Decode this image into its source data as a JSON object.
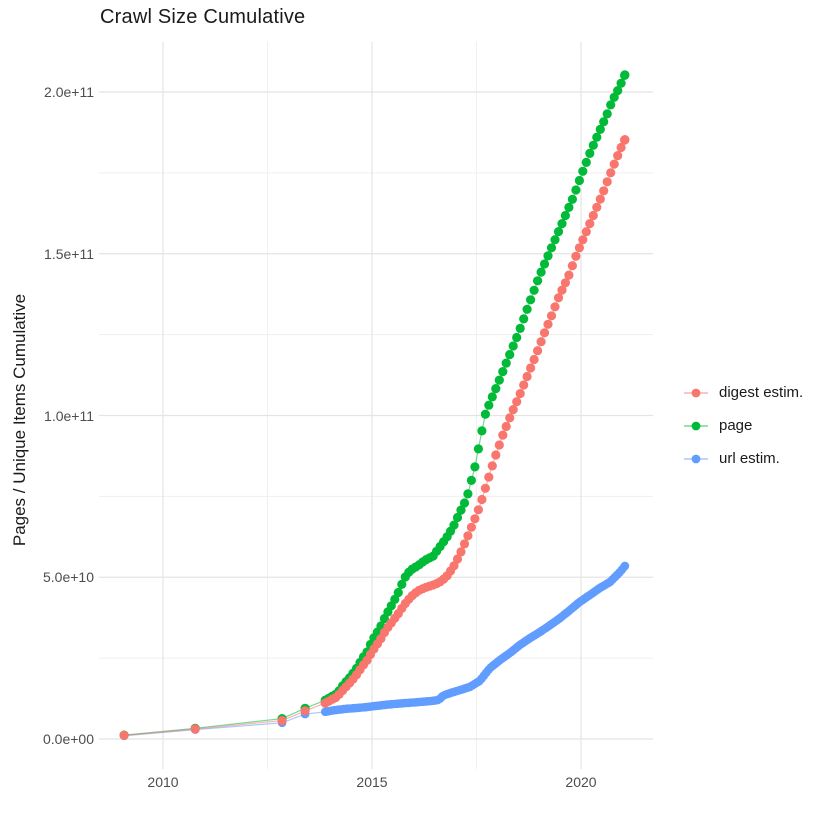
{
  "title": "Crawl Size Cumulative",
  "chart_data": {
    "type": "scatter",
    "title": "Crawl Size Cumulative",
    "xlabel": "",
    "ylabel": "Pages / Unique Items Cumulative",
    "x_unit": "year",
    "xlim": [
      2008.5,
      2021.65
    ],
    "ylim": [
      -9000000000.0,
      215500000000.0
    ],
    "grid": true,
    "legend_position": "right",
    "x_ticks": {
      "values": [
        2010,
        2015,
        2020
      ],
      "labels": [
        "2010",
        "2015",
        "2020"
      ],
      "minor": [
        2012.5,
        2017.5
      ]
    },
    "y_ticks": {
      "values": [
        0,
        50000000000.0,
        100000000000.0,
        150000000000.0,
        200000000000.0
      ],
      "labels": [
        "0.0e+00",
        "5.0e+10",
        "1.0e+11",
        "1.5e+11",
        "2.0e+11"
      ],
      "minor": [
        25000000000.0,
        75000000000.0,
        125000000000.0,
        175000000000.0
      ]
    },
    "colors": {
      "grid_major": "#e4e4e4",
      "grid_minor": "#efefef",
      "tick_text": "#4d4d4d",
      "title_text": "#1a1a1a"
    },
    "series": [
      {
        "name": "url estim.",
        "color": "#619CFF",
        "sparse_points": [
          [
            2009.07,
            1000000000.0
          ],
          [
            2010.77,
            2900000000.0
          ],
          [
            2012.85,
            5000000000.0
          ],
          [
            2013.4,
            7700000000.0
          ]
        ],
        "anchors": [
          [
            2013.88,
            8400000000.0
          ],
          [
            2014.1,
            8900000000.0
          ],
          [
            2014.35,
            9300000000.0
          ],
          [
            2014.64,
            9600000000.0
          ],
          [
            2014.9,
            9900000000.0
          ],
          [
            2015.2,
            10400000000.0
          ],
          [
            2015.5,
            10800000000.0
          ],
          [
            2015.79,
            11100000000.0
          ],
          [
            2016.0,
            11300000000.0
          ],
          [
            2016.2,
            11500000000.0
          ],
          [
            2016.45,
            11800000000.0
          ],
          [
            2016.6,
            12100000000.0
          ],
          [
            2016.7,
            13400000000.0
          ],
          [
            2016.87,
            14200000000.0
          ],
          [
            2017.1,
            15100000000.0
          ],
          [
            2017.34,
            16100000000.0
          ],
          [
            2017.58,
            18000000000.0
          ],
          [
            2017.82,
            21900000000.0
          ],
          [
            2018.06,
            24400000000.0
          ],
          [
            2018.3,
            26600000000.0
          ],
          [
            2018.54,
            29100000000.0
          ],
          [
            2018.78,
            31200000000.0
          ],
          [
            2019.02,
            33100000000.0
          ],
          [
            2019.26,
            35200000000.0
          ],
          [
            2019.5,
            37400000000.0
          ],
          [
            2019.74,
            39900000000.0
          ],
          [
            2019.97,
            42400000000.0
          ],
          [
            2020.21,
            44500000000.0
          ],
          [
            2020.45,
            46700000000.0
          ],
          [
            2020.69,
            48500000000.0
          ],
          [
            2020.93,
            51600000000.0
          ],
          [
            2021.05,
            53500000000.0
          ]
        ],
        "dense_step": 0.055
      },
      {
        "name": "page",
        "color": "#00BA38",
        "sparse_points": [
          [
            2009.07,
            1200000000.0
          ],
          [
            2010.77,
            3300000000.0
          ],
          [
            2012.85,
            6300000000.0
          ],
          [
            2013.4,
            9500000000.0
          ]
        ],
        "anchors": [
          [
            2013.88,
            12000000000.0
          ],
          [
            2014.16,
            14000000000.0
          ],
          [
            2014.33,
            17000000000.0
          ],
          [
            2014.5,
            19500000000.0
          ],
          [
            2014.64,
            22000000000.0
          ],
          [
            2014.76,
            24700000000.0
          ],
          [
            2014.88,
            26900000000.0
          ],
          [
            2014.98,
            29700000000.0
          ],
          [
            2015.07,
            31800000000.0
          ],
          [
            2015.19,
            34300000000.0
          ],
          [
            2015.29,
            37100000000.0
          ],
          [
            2015.38,
            39300000000.0
          ],
          [
            2015.5,
            42000000000.0
          ],
          [
            2015.62,
            45000000000.0
          ],
          [
            2015.72,
            48000000000.0
          ],
          [
            2015.83,
            51000000000.0
          ],
          [
            2015.96,
            52500000000.0
          ],
          [
            2016.1,
            53600000000.0
          ],
          [
            2016.27,
            55300000000.0
          ],
          [
            2016.46,
            56500000000.0
          ],
          [
            2016.6,
            59000000000.0
          ],
          [
            2016.77,
            62000000000.0
          ],
          [
            2016.94,
            65500000000.0
          ],
          [
            2017.1,
            70000000000.0
          ],
          [
            2017.27,
            74500000000.0
          ],
          [
            2017.46,
            84000000000.0
          ],
          [
            2017.58,
            92000000000.0
          ],
          [
            2017.7,
            100000000000.0
          ],
          [
            2017.82,
            104000000000.0
          ],
          [
            2017.92,
            107000000000.0
          ],
          [
            2018.11,
            113000000000.0
          ],
          [
            2018.3,
            119000000000.0
          ],
          [
            2018.49,
            125000000000.0
          ],
          [
            2018.66,
            131000000000.0
          ],
          [
            2018.83,
            137000000000.0
          ],
          [
            2019.0,
            143000000000.0
          ],
          [
            2019.2,
            149000000000.0
          ],
          [
            2019.4,
            155000000000.0
          ],
          [
            2019.6,
            161000000000.0
          ],
          [
            2019.8,
            167000000000.0
          ],
          [
            2020.0,
            174000000000.0
          ],
          [
            2020.21,
            181000000000.0
          ],
          [
            2020.41,
            187000000000.0
          ],
          [
            2020.62,
            193000000000.0
          ],
          [
            2020.74,
            197000000000.0
          ],
          [
            2020.9,
            201000000000.0
          ],
          [
            2021.05,
            205300000000.0
          ]
        ],
        "dense_step": 0.0833
      },
      {
        "name": "digest estim.",
        "color": "#F8766D",
        "sparse_points": [
          [
            2009.07,
            1100000000.0
          ],
          [
            2010.77,
            3100000000.0
          ],
          [
            2012.85,
            5700000000.0
          ],
          [
            2013.4,
            8700000000.0
          ]
        ],
        "anchors": [
          [
            2013.88,
            11100000000.0
          ],
          [
            2014.16,
            13000000000.0
          ],
          [
            2014.33,
            15500000000.0
          ],
          [
            2014.5,
            17800000000.0
          ],
          [
            2014.64,
            20000000000.0
          ],
          [
            2014.76,
            22300000000.0
          ],
          [
            2014.88,
            24300000000.0
          ],
          [
            2014.98,
            26500000000.0
          ],
          [
            2015.07,
            28300000000.0
          ],
          [
            2015.19,
            30500000000.0
          ],
          [
            2015.29,
            32800000000.0
          ],
          [
            2015.38,
            34500000000.0
          ],
          [
            2015.5,
            36500000000.0
          ],
          [
            2015.62,
            38600000000.0
          ],
          [
            2015.72,
            40500000000.0
          ],
          [
            2015.83,
            42500000000.0
          ],
          [
            2015.96,
            44300000000.0
          ],
          [
            2016.1,
            45800000000.0
          ],
          [
            2016.27,
            46800000000.0
          ],
          [
            2016.46,
            47600000000.0
          ],
          [
            2016.6,
            48300000000.0
          ],
          [
            2016.77,
            50000000000.0
          ],
          [
            2016.94,
            53000000000.0
          ],
          [
            2017.1,
            57000000000.0
          ],
          [
            2017.27,
            62000000000.0
          ],
          [
            2017.46,
            68000000000.0
          ],
          [
            2017.58,
            72000000000.0
          ],
          [
            2017.7,
            77000000000.0
          ],
          [
            2017.82,
            82000000000.0
          ],
          [
            2017.94,
            87000000000.0
          ],
          [
            2018.13,
            94000000000.0
          ],
          [
            2018.35,
            101000000000.0
          ],
          [
            2018.52,
            106000000000.0
          ],
          [
            2018.71,
            112000000000.0
          ],
          [
            2018.9,
            118000000000.0
          ],
          [
            2019.11,
            125000000000.0
          ],
          [
            2019.3,
            131000000000.0
          ],
          [
            2019.48,
            137000000000.0
          ],
          [
            2019.7,
            143000000000.0
          ],
          [
            2019.9,
            150000000000.0
          ],
          [
            2020.1,
            156000000000.0
          ],
          [
            2020.3,
            162000000000.0
          ],
          [
            2020.53,
            169000000000.0
          ],
          [
            2020.74,
            176000000000.0
          ],
          [
            2020.93,
            182000000000.0
          ],
          [
            2021.05,
            185300000000.0
          ]
        ],
        "dense_step": 0.0833
      }
    ],
    "legend_order": [
      "digest estim.",
      "page",
      "url estim."
    ]
  }
}
